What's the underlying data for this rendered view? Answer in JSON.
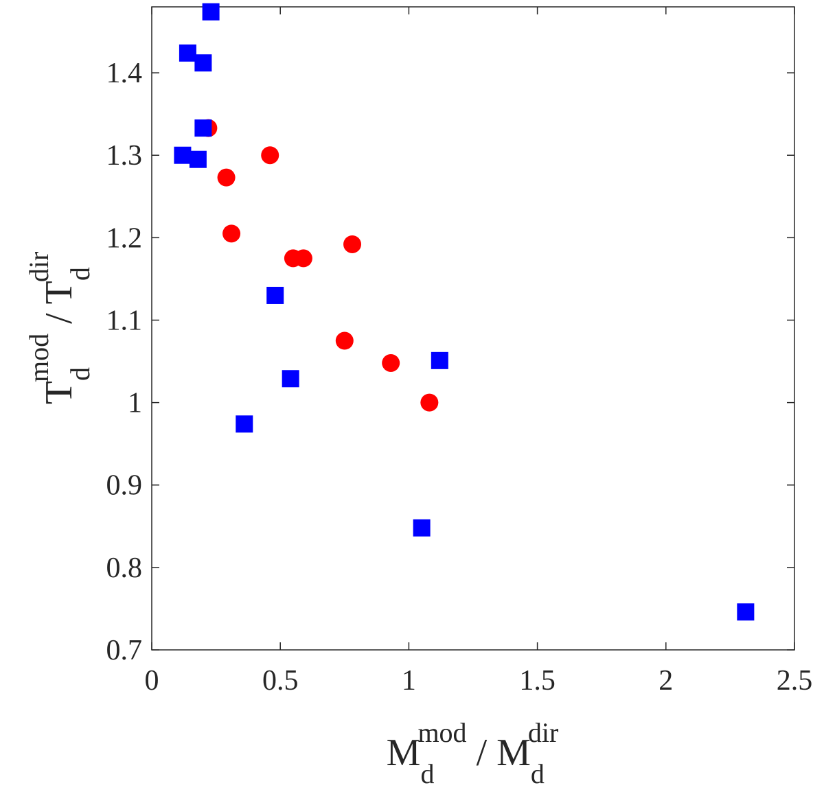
{
  "chart_data": {
    "type": "scatter",
    "xlim": [
      0,
      2.5
    ],
    "ylim": [
      0.7,
      1.48
    ],
    "x_ticks": [
      0,
      0.5,
      1,
      1.5,
      2,
      2.5
    ],
    "x_tick_labels": [
      "0",
      "0.5",
      "1",
      "1.5",
      "2",
      "2.5"
    ],
    "y_ticks": [
      0.7,
      0.8,
      0.9,
      1.0,
      1.1,
      1.2,
      1.3,
      1.4
    ],
    "y_tick_labels": [
      "0.7",
      "0.8",
      "0.9",
      "1",
      "1.1",
      "1.2",
      "1.3",
      "1.4"
    ],
    "xlabel": {
      "main": "M",
      "sup1": "mod",
      "sub1": "d",
      "sep": " / ",
      "main2": "M",
      "sup2": "dir",
      "sub2": "d"
    },
    "ylabel": {
      "main": "T",
      "sup1": "mod",
      "sub1": "d",
      "sep": " / ",
      "main2": "T",
      "sup2": "dir",
      "sub2": "d"
    },
    "grid": false,
    "series": [
      {
        "marker": "circle",
        "color": "#ff0000",
        "points": [
          {
            "x": 0.22,
            "y": 1.333
          },
          {
            "x": 0.46,
            "y": 1.3
          },
          {
            "x": 0.29,
            "y": 1.273
          },
          {
            "x": 0.31,
            "y": 1.205
          },
          {
            "x": 0.55,
            "y": 1.175
          },
          {
            "x": 0.59,
            "y": 1.175
          },
          {
            "x": 0.78,
            "y": 1.192
          },
          {
            "x": 0.75,
            "y": 1.075
          },
          {
            "x": 0.93,
            "y": 1.048
          },
          {
            "x": 1.08,
            "y": 1.0
          }
        ]
      },
      {
        "marker": "square",
        "color": "#0000ff",
        "points": [
          {
            "x": 0.23,
            "y": 1.474
          },
          {
            "x": 0.14,
            "y": 1.424
          },
          {
            "x": 0.2,
            "y": 1.412
          },
          {
            "x": 0.2,
            "y": 1.333
          },
          {
            "x": 0.12,
            "y": 1.3
          },
          {
            "x": 0.18,
            "y": 1.295
          },
          {
            "x": 0.48,
            "y": 1.13
          },
          {
            "x": 1.12,
            "y": 1.051
          },
          {
            "x": 0.54,
            "y": 1.029
          },
          {
            "x": 0.36,
            "y": 0.974
          },
          {
            "x": 1.05,
            "y": 0.848
          },
          {
            "x": 2.31,
            "y": 0.746
          }
        ]
      }
    ]
  }
}
